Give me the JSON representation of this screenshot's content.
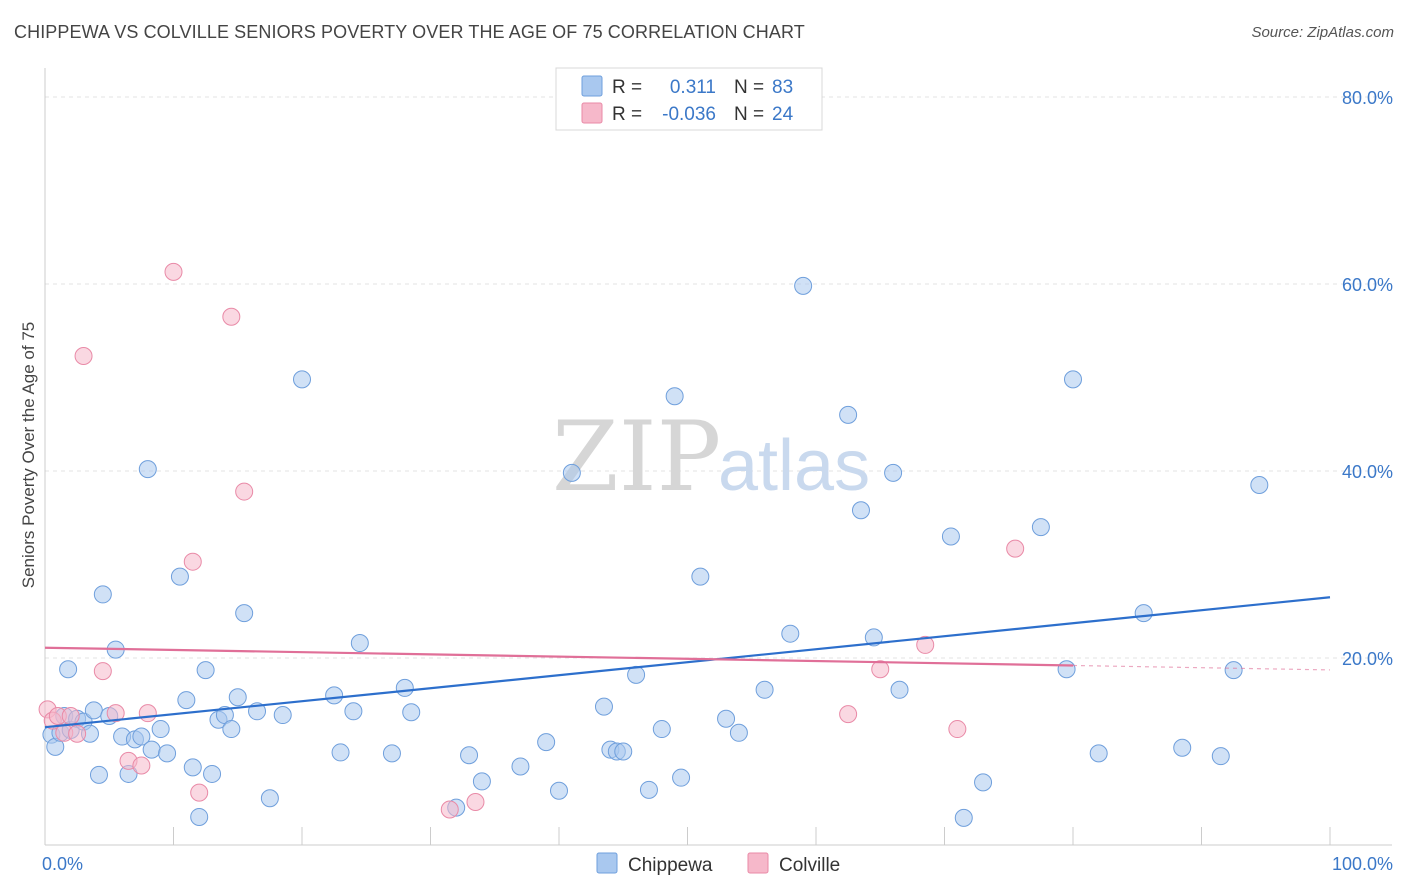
{
  "header": {
    "title": "CHIPPEWA VS COLVILLE SENIORS POVERTY OVER THE AGE OF 75 CORRELATION CHART",
    "source": "Source: ZipAtlas.com"
  },
  "watermark": {
    "zip": "ZIP",
    "atlas": "atlas"
  },
  "legend_box": {
    "rows": [
      {
        "r_label": "R =",
        "r_value": "0.311",
        "n_label": "N =",
        "n_value": "83",
        "color": "#a9c8ef"
      },
      {
        "r_label": "R =",
        "r_value": "-0.036",
        "n_label": "N =",
        "n_value": "24",
        "color": "#f6b8ca"
      }
    ]
  },
  "chart_data": {
    "type": "scatter",
    "title": "CHIPPEWA VS COLVILLE SENIORS POVERTY OVER THE AGE OF 75 CORRELATION CHART",
    "xlabel": "",
    "ylabel": "Seniors Poverty Over the Age of 75",
    "xlim": [
      0,
      100
    ],
    "ylim": [
      0,
      80
    ],
    "x_tick_labels": [
      "0.0%",
      "100.0%"
    ],
    "y_ticks": [
      20,
      40,
      60,
      80
    ],
    "y_tick_labels": [
      "20.0%",
      "40.0%",
      "60.0%",
      "80.0%"
    ],
    "grid": true,
    "legend_position": "top-center",
    "series": [
      {
        "name": "Chippewa",
        "color": "#a9c8ef",
        "stroke": "#6f9fdc",
        "trend": {
          "x": [
            0,
            100
          ],
          "y": [
            12.6,
            26.5
          ],
          "color": "#2d6fcc"
        },
        "points": [
          [
            0.5,
            11.8
          ],
          [
            0.8,
            10.5
          ],
          [
            1.2,
            12.0
          ],
          [
            1.5,
            13.8
          ],
          [
            1.8,
            18.8
          ],
          [
            2.0,
            12.3
          ],
          [
            2.5,
            13.5
          ],
          [
            3.0,
            13.2
          ],
          [
            3.5,
            11.9
          ],
          [
            3.8,
            14.4
          ],
          [
            4.2,
            7.5
          ],
          [
            4.5,
            26.8
          ],
          [
            5.0,
            13.8
          ],
          [
            5.5,
            20.9
          ],
          [
            6.0,
            11.6
          ],
          [
            6.5,
            7.6
          ],
          [
            7.0,
            11.3
          ],
          [
            7.5,
            11.6
          ],
          [
            8.0,
            40.2
          ],
          [
            8.3,
            10.2
          ],
          [
            9.0,
            12.4
          ],
          [
            9.5,
            9.8
          ],
          [
            10.5,
            28.7
          ],
          [
            11.0,
            15.5
          ],
          [
            11.5,
            8.3
          ],
          [
            12.0,
            3.0
          ],
          [
            12.5,
            18.7
          ],
          [
            13.0,
            7.6
          ],
          [
            13.5,
            13.4
          ],
          [
            14.0,
            13.9
          ],
          [
            14.5,
            12.4
          ],
          [
            15.0,
            15.8
          ],
          [
            15.5,
            24.8
          ],
          [
            16.5,
            14.3
          ],
          [
            17.5,
            5.0
          ],
          [
            18.5,
            13.9
          ],
          [
            20.0,
            49.8
          ],
          [
            22.5,
            16.0
          ],
          [
            23.0,
            9.9
          ],
          [
            24.0,
            14.3
          ],
          [
            24.5,
            21.6
          ],
          [
            27.0,
            9.8
          ],
          [
            28.0,
            16.8
          ],
          [
            28.5,
            14.2
          ],
          [
            32.0,
            4.0
          ],
          [
            33.0,
            9.6
          ],
          [
            34.0,
            6.8
          ],
          [
            37.0,
            8.4
          ],
          [
            39.0,
            11.0
          ],
          [
            40.0,
            5.8
          ],
          [
            41.0,
            39.8
          ],
          [
            43.5,
            14.8
          ],
          [
            44.0,
            10.2
          ],
          [
            44.5,
            10.0
          ],
          [
            46.0,
            18.2
          ],
          [
            47.0,
            5.9
          ],
          [
            48.0,
            12.4
          ],
          [
            49.0,
            48.0
          ],
          [
            49.5,
            7.2
          ],
          [
            51.0,
            28.7
          ],
          [
            53.0,
            13.5
          ],
          [
            54.0,
            12.0
          ],
          [
            56.0,
            16.6
          ],
          [
            58.0,
            22.6
          ],
          [
            59.0,
            59.8
          ],
          [
            62.5,
            46.0
          ],
          [
            63.5,
            35.8
          ],
          [
            64.5,
            22.2
          ],
          [
            66.0,
            39.8
          ],
          [
            66.5,
            16.6
          ],
          [
            70.5,
            33.0
          ],
          [
            71.5,
            2.9
          ],
          [
            73.0,
            6.7
          ],
          [
            77.5,
            34.0
          ],
          [
            79.5,
            18.8
          ],
          [
            80.0,
            49.8
          ],
          [
            82.0,
            9.8
          ],
          [
            85.5,
            24.8
          ],
          [
            88.5,
            10.4
          ],
          [
            91.5,
            9.5
          ],
          [
            92.5,
            18.7
          ],
          [
            94.5,
            38.5
          ],
          [
            45.0,
            10.0
          ]
        ]
      },
      {
        "name": "Colville",
        "color": "#f6b8ca",
        "stroke": "#e98aa7",
        "trend": {
          "x": [
            0,
            80
          ],
          "y": [
            21.1,
            19.2
          ],
          "color": "#e06f98",
          "dashed_extension": [
            80,
            100
          ]
        },
        "points": [
          [
            0.2,
            14.5
          ],
          [
            0.6,
            13.3
          ],
          [
            1.0,
            13.8
          ],
          [
            1.5,
            12.0
          ],
          [
            2.0,
            13.8
          ],
          [
            2.5,
            11.9
          ],
          [
            3.0,
            52.3
          ],
          [
            4.5,
            18.6
          ],
          [
            5.5,
            14.1
          ],
          [
            6.5,
            9.0
          ],
          [
            7.5,
            8.5
          ],
          [
            8.0,
            14.1
          ],
          [
            10.0,
            61.3
          ],
          [
            11.5,
            30.3
          ],
          [
            12.0,
            5.6
          ],
          [
            14.5,
            56.5
          ],
          [
            15.5,
            37.8
          ],
          [
            31.5,
            3.8
          ],
          [
            33.5,
            4.6
          ],
          [
            62.5,
            14.0
          ],
          [
            65.0,
            18.8
          ],
          [
            68.5,
            21.4
          ],
          [
            71.0,
            12.4
          ],
          [
            75.5,
            31.7
          ]
        ]
      }
    ]
  },
  "bottom_legend": {
    "items": [
      {
        "label": "Chippewa",
        "color": "#a9c8ef"
      },
      {
        "label": "Colville",
        "color": "#f6b8ca"
      }
    ]
  }
}
